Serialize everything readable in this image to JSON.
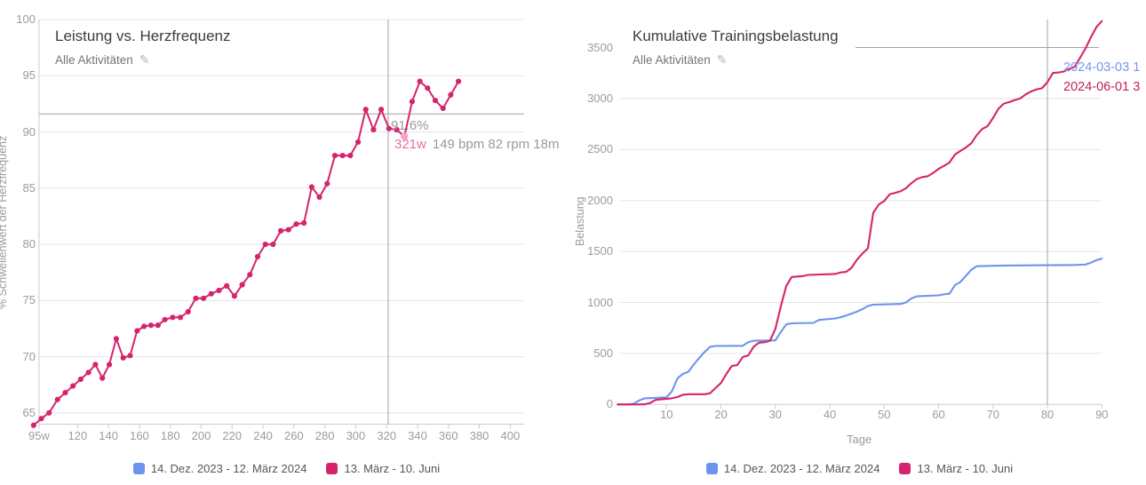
{
  "page": {
    "background": "#ffffff"
  },
  "colors": {
    "series_pink": "#d5246d",
    "series_blue": "#6d92ef",
    "highlight_point": "#f0a9c6",
    "gridline": "#e5e5e5",
    "axis_line": "#cccccc",
    "crosshair": "#a3a3a3",
    "tick_text": "#9b9b9b"
  },
  "chart_data": [
    {
      "id": "power_vs_hr",
      "type": "line",
      "title": "Leistung vs. Herzfrequenz",
      "subtitle": "Alle Aktivitäten",
      "edit_icon": "pencil-icon",
      "xlabel": "",
      "ylabel": "% Schwellenwert der Herzfrequenz",
      "xlim": [
        95,
        409
      ],
      "ylim": [
        64,
        100
      ],
      "xtick_values": [
        95,
        120,
        140,
        160,
        180,
        200,
        220,
        240,
        260,
        280,
        300,
        320,
        340,
        360,
        380,
        400
      ],
      "xtick_labels": [
        "95w",
        "120",
        "140",
        "160",
        "180",
        "200",
        "220",
        "240",
        "260",
        "280",
        "300",
        "320",
        "340",
        "360",
        "380",
        "400"
      ],
      "ytick_values": [
        65,
        70,
        75,
        80,
        85,
        90,
        95,
        100
      ],
      "ytick_labels": [
        "65",
        "70",
        "75",
        "80",
        "85",
        "90",
        "95",
        "100"
      ],
      "grid": "horizontal",
      "legend_position": "bottom",
      "series": [
        {
          "name": "13. März - 10. Juni",
          "color": "#d5246d",
          "markers": true,
          "points": [
            [
              91.5,
              63.9
            ],
            [
              96.5,
              64.5
            ],
            [
              101.5,
              65.0
            ],
            [
              107,
              66.2
            ],
            [
              112,
              66.8
            ],
            [
              117,
              67.4
            ],
            [
              122,
              68.0
            ],
            [
              127,
              68.6
            ],
            [
              131.5,
              69.3
            ],
            [
              136,
              68.1
            ],
            [
              140.5,
              69.3
            ],
            [
              145,
              71.6
            ],
            [
              149.5,
              69.9
            ],
            [
              154,
              70.1
            ],
            [
              158.5,
              72.3
            ],
            [
              163,
              72.7
            ],
            [
              167.5,
              72.8
            ],
            [
              172,
              72.8
            ],
            [
              176.5,
              73.3
            ],
            [
              181.5,
              73.5
            ],
            [
              186.5,
              73.5
            ],
            [
              191.5,
              74.0
            ],
            [
              196.5,
              75.2
            ],
            [
              201.5,
              75.2
            ],
            [
              206.5,
              75.6
            ],
            [
              211.5,
              75.9
            ],
            [
              216.5,
              76.3
            ],
            [
              221.5,
              75.4
            ],
            [
              226.5,
              76.4
            ],
            [
              231.5,
              77.3
            ],
            [
              236.5,
              78.9
            ],
            [
              241.5,
              80.0
            ],
            [
              246.5,
              80.0
            ],
            [
              251.5,
              81.2
            ],
            [
              256.5,
              81.3
            ],
            [
              261.5,
              81.8
            ],
            [
              266.5,
              81.9
            ],
            [
              271.5,
              85.1
            ],
            [
              276.5,
              84.2
            ],
            [
              281.5,
              85.4
            ],
            [
              286.5,
              87.9
            ],
            [
              291.5,
              87.9
            ],
            [
              296.5,
              87.9
            ],
            [
              301.5,
              89.1
            ],
            [
              306.5,
              92.0
            ],
            [
              311.5,
              90.2
            ],
            [
              316.5,
              92.0
            ],
            [
              321.5,
              90.3
            ],
            [
              326.5,
              90.2
            ],
            [
              331.5,
              89.6
            ],
            [
              336.5,
              92.7
            ],
            [
              341.5,
              94.5
            ],
            [
              346.5,
              93.9
            ],
            [
              351.5,
              92.8
            ],
            [
              356.5,
              92.1
            ],
            [
              361.5,
              93.3
            ],
            [
              366.5,
              94.5
            ]
          ]
        }
      ],
      "highlight_point": {
        "x": 331.5,
        "y": 89.6,
        "color": "#f0a9c6"
      },
      "crosshair": {
        "x": 321,
        "y": 91.6
      },
      "tooltip": {
        "percent": "91.6%",
        "power": "321w",
        "details": "149 bpm 82 rpm 18m"
      },
      "legend": [
        {
          "label": "14. Dez. 2023 - 12. März 2024",
          "color": "#6d92ef"
        },
        {
          "label": "13. März - 10. Juni",
          "color": "#d5246d"
        }
      ]
    },
    {
      "id": "cumulative_load",
      "type": "line",
      "title": "Kumulative Trainingsbelastung",
      "subtitle": "Alle Aktivitäten",
      "edit_icon": "pencil-icon",
      "xlabel": "Tage",
      "ylabel": "Belastung",
      "xlim": [
        10,
        90
      ],
      "ylim": [
        0,
        3500
      ],
      "xtick_values": [
        10,
        20,
        30,
        40,
        50,
        60,
        70,
        80,
        90
      ],
      "xtick_labels": [
        "10",
        "20",
        "30",
        "40",
        "50",
        "60",
        "70",
        "80",
        "90"
      ],
      "ytick_values": [
        0,
        500,
        1000,
        1500,
        2000,
        2500,
        3000,
        3500
      ],
      "ytick_labels": [
        "0",
        "500",
        "1000",
        "1500",
        "2000",
        "2500",
        "3000",
        "3500"
      ],
      "grid": "horizontal",
      "legend_position": "bottom",
      "series": [
        {
          "name": "14. Dez. 2023 - 12. März 2024",
          "color": "#6d92ef",
          "markers": false,
          "points": [
            [
              1,
              0
            ],
            [
              3,
              0
            ],
            [
              4,
              8
            ],
            [
              5,
              40
            ],
            [
              6,
              60
            ],
            [
              10,
              70
            ],
            [
              11,
              130
            ],
            [
              12,
              255
            ],
            [
              13,
              300
            ],
            [
              14,
              320
            ],
            [
              15,
              390
            ],
            [
              16,
              455
            ],
            [
              17,
              515
            ],
            [
              18,
              565
            ],
            [
              19,
              573
            ],
            [
              24,
              575
            ],
            [
              25,
              610
            ],
            [
              26,
              625
            ],
            [
              30,
              628
            ],
            [
              31,
              710
            ],
            [
              32,
              785
            ],
            [
              33,
              795
            ],
            [
              37,
              800
            ],
            [
              38,
              828
            ],
            [
              41,
              843
            ],
            [
              42,
              855
            ],
            [
              43,
              872
            ],
            [
              44,
              890
            ],
            [
              45,
              910
            ],
            [
              46,
              935
            ],
            [
              47,
              965
            ],
            [
              48,
              978
            ],
            [
              53,
              985
            ],
            [
              54,
              1000
            ],
            [
              55,
              1040
            ],
            [
              56,
              1060
            ],
            [
              60,
              1070
            ],
            [
              61,
              1080
            ],
            [
              62,
              1085
            ],
            [
              63,
              1170
            ],
            [
              64,
              1200
            ],
            [
              65,
              1260
            ],
            [
              66,
              1320
            ],
            [
              67,
              1355
            ],
            [
              70,
              1360
            ],
            [
              75,
              1363
            ],
            [
              80,
              1365
            ],
            [
              85,
              1368
            ],
            [
              86,
              1370
            ],
            [
              87,
              1372
            ],
            [
              88,
              1390
            ],
            [
              89,
              1415
            ],
            [
              90,
              1430
            ]
          ]
        },
        {
          "name": "13. März - 10. Juni",
          "color": "#d5246d",
          "markers": false,
          "points": [
            [
              1,
              0
            ],
            [
              5,
              0
            ],
            [
              6,
              2
            ],
            [
              7,
              15
            ],
            [
              8,
              44
            ],
            [
              9,
              50
            ],
            [
              11,
              60
            ],
            [
              12,
              72
            ],
            [
              13,
              95
            ],
            [
              14,
              100
            ],
            [
              17,
              100
            ],
            [
              18,
              110
            ],
            [
              19,
              160
            ],
            [
              20,
              210
            ],
            [
              21,
              300
            ],
            [
              22,
              378
            ],
            [
              23,
              385
            ],
            [
              24,
              465
            ],
            [
              25,
              480
            ],
            [
              26,
              565
            ],
            [
              27,
              605
            ],
            [
              28,
              610
            ],
            [
              29,
              625
            ],
            [
              30,
              740
            ],
            [
              31,
              960
            ],
            [
              32,
              1160
            ],
            [
              33,
              1250
            ],
            [
              35,
              1258
            ],
            [
              36,
              1270
            ],
            [
              41,
              1280
            ],
            [
              42,
              1294
            ],
            [
              43,
              1300
            ],
            [
              44,
              1340
            ],
            [
              45,
              1420
            ],
            [
              46,
              1480
            ],
            [
              47,
              1530
            ],
            [
              48,
              1880
            ],
            [
              49,
              1960
            ],
            [
              50,
              1995
            ],
            [
              51,
              2060
            ],
            [
              52,
              2075
            ],
            [
              53,
              2090
            ],
            [
              54,
              2120
            ],
            [
              55,
              2170
            ],
            [
              56,
              2210
            ],
            [
              57,
              2230
            ],
            [
              58,
              2238
            ],
            [
              59,
              2270
            ],
            [
              60,
              2310
            ],
            [
              61,
              2340
            ],
            [
              62,
              2372
            ],
            [
              63,
              2450
            ],
            [
              64,
              2485
            ],
            [
              65,
              2520
            ],
            [
              66,
              2560
            ],
            [
              67,
              2640
            ],
            [
              68,
              2700
            ],
            [
              69,
              2730
            ],
            [
              70,
              2808
            ],
            [
              71,
              2900
            ],
            [
              72,
              2950
            ],
            [
              73,
              2965
            ],
            [
              74,
              2985
            ],
            [
              75,
              3000
            ],
            [
              76,
              3040
            ],
            [
              77,
              3070
            ],
            [
              78,
              3090
            ],
            [
              79,
              3100
            ],
            [
              80,
              3160
            ],
            [
              81,
              3250
            ],
            [
              82,
              3255
            ],
            [
              83,
              3265
            ],
            [
              84,
              3290
            ],
            [
              85,
              3310
            ],
            [
              86,
              3400
            ],
            [
              87,
              3490
            ],
            [
              88,
              3600
            ],
            [
              89,
              3700
            ],
            [
              90,
              3760
            ]
          ]
        }
      ],
      "crosshair": {
        "x": 80,
        "y": 3500
      },
      "tooltip": {
        "lines": [
          {
            "text": "2024-03-03 1",
            "color": "#7597f3"
          },
          {
            "text": "2024-06-01 3",
            "color": "#c22163"
          }
        ]
      },
      "legend": [
        {
          "label": "14. Dez. 2023 - 12. März 2024",
          "color": "#6d92ef"
        },
        {
          "label": "13. März - 10. Juni",
          "color": "#d5246d"
        }
      ]
    }
  ]
}
